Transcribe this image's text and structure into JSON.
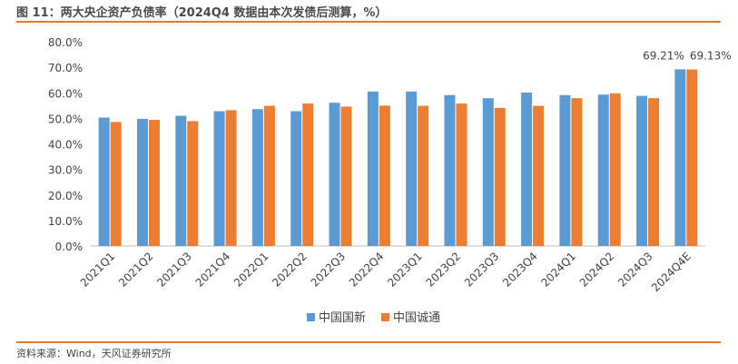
{
  "title": "图 11：两大央企资产负债率（2024Q4 数据由本次发债后测算，%）",
  "source": "资料来源：Wind，天风证券研究所",
  "chart_data": {
    "type": "bar",
    "categories": [
      "2021Q1",
      "2021Q2",
      "2021Q3",
      "2021Q4",
      "2022Q1",
      "2022Q2",
      "2022Q3",
      "2022Q4",
      "2023Q1",
      "2023Q2",
      "2023Q3",
      "2023Q4",
      "2024Q1",
      "2024Q2",
      "2024Q3",
      "2024Q4E"
    ],
    "series": [
      {
        "name": "中国国新",
        "color": "#5b9bd5",
        "values": [
          50.3,
          49.8,
          51.0,
          52.8,
          53.6,
          52.8,
          56.1,
          60.5,
          60.5,
          59.1,
          57.9,
          60.1,
          59.1,
          59.3,
          58.8,
          69.21
        ]
      },
      {
        "name": "中国诚通",
        "color": "#ed7d31",
        "values": [
          48.6,
          49.4,
          48.9,
          53.2,
          54.9,
          55.8,
          54.6,
          55.0,
          54.9,
          55.8,
          54.1,
          54.9,
          57.9,
          59.8,
          57.9,
          69.13
        ]
      }
    ],
    "data_labels": [
      {
        "series": 0,
        "index": 15,
        "text": "69.21%"
      },
      {
        "series": 1,
        "index": 15,
        "text": "69.13%"
      }
    ],
    "y_ticks": [
      "0.0%",
      "10.0%",
      "20.0%",
      "30.0%",
      "40.0%",
      "50.0%",
      "60.0%",
      "70.0%",
      "80.0%"
    ],
    "ylim": [
      0,
      80
    ],
    "legend_position": "bottom-center"
  }
}
